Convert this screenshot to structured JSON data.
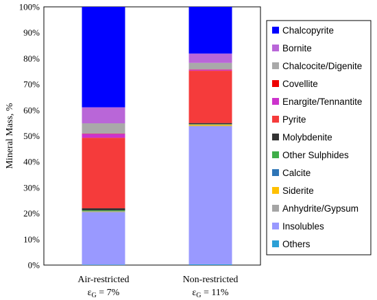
{
  "chart_data": {
    "type": "bar",
    "stacked": true,
    "ylabel": "Mineral Mass, %",
    "ylim": [
      0,
      100
    ],
    "yticks": [
      "0%",
      "10%",
      "20%",
      "30%",
      "40%",
      "50%",
      "60%",
      "70%",
      "80%",
      "90%",
      "100%"
    ],
    "categories": [
      {
        "label": "Air-restricted",
        "sub_symbol": "ε",
        "sub_index": "G",
        "sub_value": " = 7%"
      },
      {
        "label": "Non-restricted",
        "sub_symbol": "ε",
        "sub_index": "G",
        "sub_value": " = 11%"
      }
    ],
    "legend_position": "right",
    "series": [
      {
        "name": "Others",
        "color": "#2ca0d6",
        "values": [
          0.2,
          0.3
        ]
      },
      {
        "name": "Insolubles",
        "color": "#9999ff",
        "values": [
          20.2,
          53.4
        ]
      },
      {
        "name": "Anhydrite/Gypsum",
        "color": "#a5a5a5",
        "values": [
          0.3,
          0.3
        ]
      },
      {
        "name": "Siderite",
        "color": "#ffc000",
        "values": [
          0.1,
          0.4
        ]
      },
      {
        "name": "Calcite",
        "color": "#2e75b6",
        "values": [
          0.1,
          0.1
        ]
      },
      {
        "name": "Other Sulphides",
        "color": "#3fae49",
        "values": [
          0.3,
          0.1
        ]
      },
      {
        "name": "Molybdenite",
        "color": "#333333",
        "values": [
          0.8,
          0.4
        ]
      },
      {
        "name": "Pyrite",
        "color": "#f53b3b",
        "values": [
          27.3,
          20.3
        ]
      },
      {
        "name": "Enargite/Tennantite",
        "color": "#cc33cc",
        "values": [
          1.5,
          0.4
        ]
      },
      {
        "name": "Covellite",
        "color": "#ee0000",
        "values": [
          0.1,
          0.1
        ]
      },
      {
        "name": "Chalcocite/Digenite",
        "color": "#a9a9a9",
        "values": [
          4.0,
          2.5
        ]
      },
      {
        "name": "Bornite",
        "color": "#b966d8",
        "values": [
          6.2,
          3.6
        ]
      },
      {
        "name": "Chalcopyrite",
        "color": "#0000ff",
        "values": [
          38.9,
          18.1
        ]
      }
    ],
    "legend_order": [
      "Chalcopyrite",
      "Bornite",
      "Chalcocite/Digenite",
      "Covellite",
      "Enargite/Tennantite",
      "Pyrite",
      "Molybdenite",
      "Other Sulphides",
      "Calcite",
      "Siderite",
      "Anhydrite/Gypsum",
      "Insolubles",
      "Others"
    ]
  }
}
